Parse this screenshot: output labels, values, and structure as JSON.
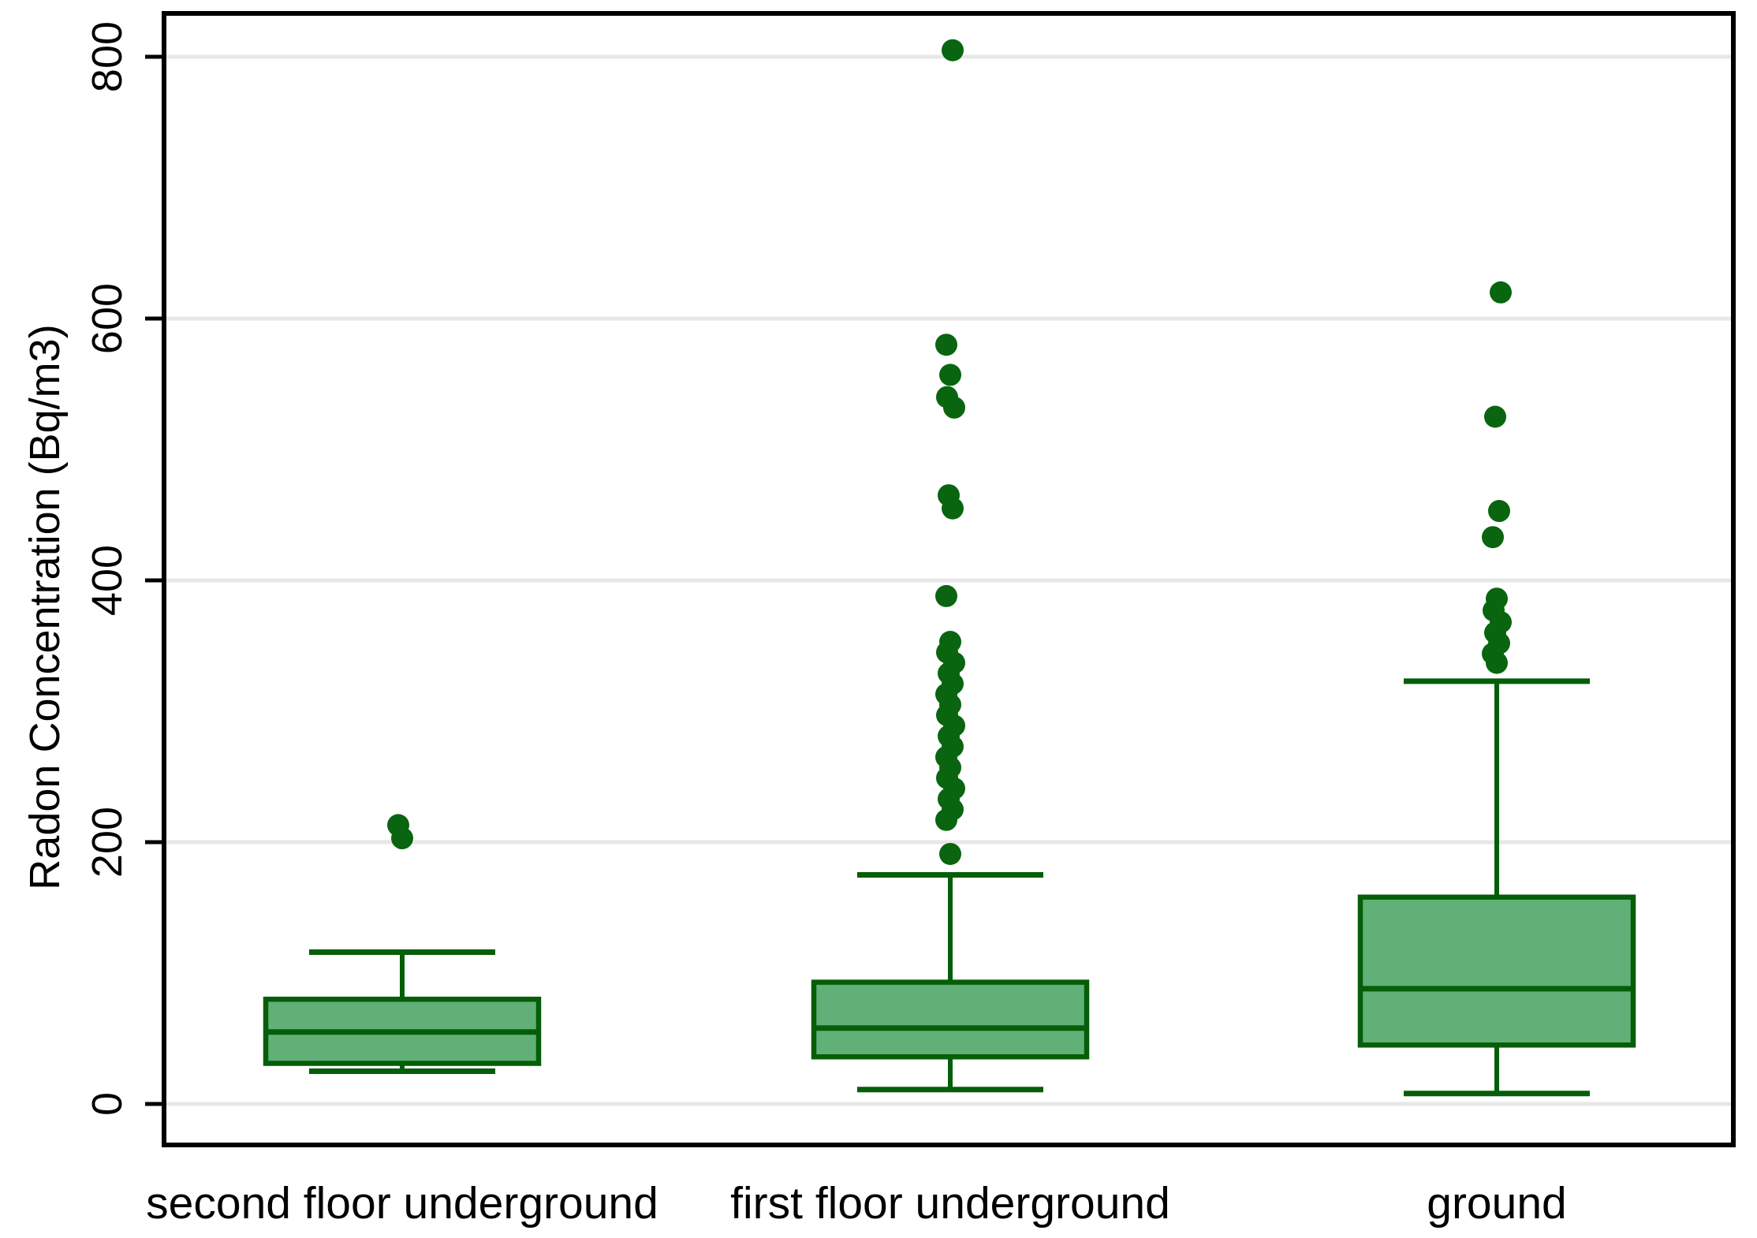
{
  "figure": {
    "background": "#ffffff"
  },
  "chart_data": {
    "type": "box",
    "title": "",
    "ylabel": "Radon Concentration (Bq/m3)",
    "xlabel": "",
    "ylim": [
      0,
      800
    ],
    "yticks": [
      0,
      200,
      400,
      600,
      800
    ],
    "ytick_labels": [
      "0",
      "200",
      "400",
      "600",
      "800"
    ],
    "grid": "horizontal",
    "tick_label_rotation_deg": -90,
    "categories": [
      "second floor underground",
      "first floor underground",
      "ground"
    ],
    "series": [
      {
        "name": "second floor underground",
        "whisker_low": 25,
        "q1": 31,
        "median": 55,
        "q3": 80,
        "whisker_high": 116,
        "outliers": [
          203,
          213
        ]
      },
      {
        "name": "first floor underground",
        "whisker_low": 11,
        "q1": 36,
        "median": 58,
        "q3": 93,
        "whisker_high": 175,
        "outliers": [
          191,
          217,
          225,
          233,
          241,
          249,
          257,
          265,
          273,
          281,
          289,
          297,
          305,
          313,
          321,
          329,
          337,
          345,
          353,
          388,
          455,
          465,
          532,
          540,
          557,
          580,
          805
        ]
      },
      {
        "name": "ground",
        "whisker_low": 8,
        "q1": 45,
        "median": 88,
        "q3": 158,
        "whisker_high": 323,
        "outliers": [
          337,
          344,
          352,
          360,
          368,
          377,
          386,
          433,
          453,
          525,
          620
        ]
      }
    ],
    "colors": {
      "box_fill": "#60B077",
      "box_stroke": "#055E08",
      "outlier_dot": "#09650F",
      "gridline": "#E7E7E7",
      "axis": "#000000",
      "text": "#000000"
    }
  }
}
